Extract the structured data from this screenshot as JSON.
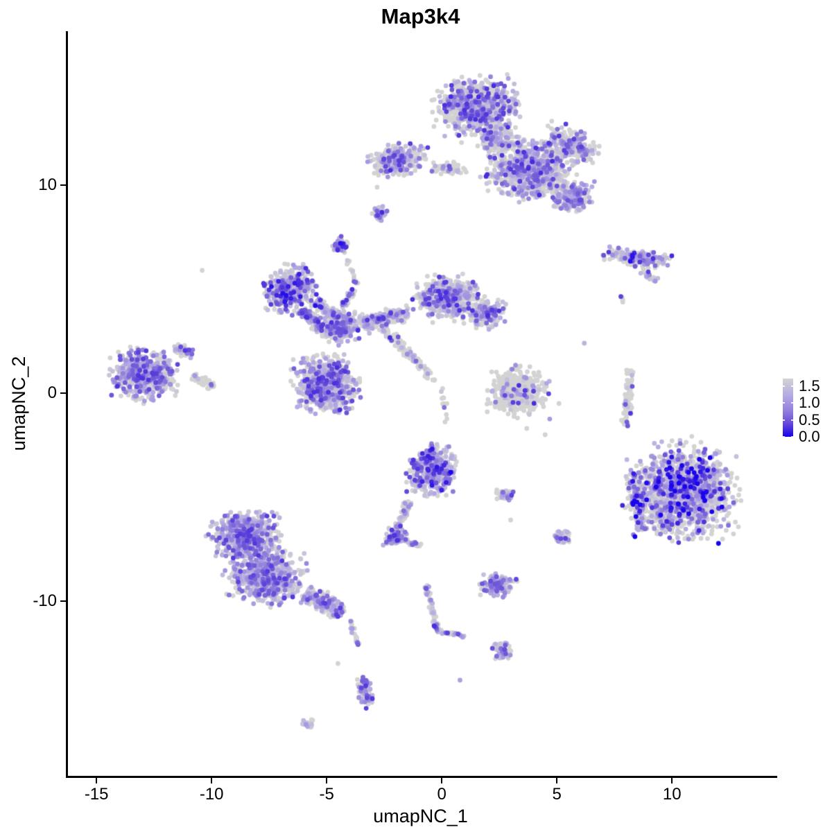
{
  "chart_data": {
    "type": "scatter",
    "title": "Map3k4",
    "xlabel": "umapNC_1",
    "ylabel": "umapNC_2",
    "xlim": [
      -16.33,
      14.48
    ],
    "ylim": [
      -18.4,
      17.4
    ],
    "x_ticks": [
      -15,
      -10,
      -5,
      0,
      5,
      10
    ],
    "y_ticks": [
      -10,
      0,
      10
    ],
    "grid": false,
    "background": "#ffffff",
    "point_radius_px": 3.4,
    "seed": 20240613,
    "legend": {
      "position": "right",
      "tick_labels": [
        "1.5",
        "1.0",
        "0.5",
        "0.0"
      ],
      "tick_values": [
        1.5,
        1.0,
        0.5,
        0.0
      ],
      "vmin": 0.0,
      "vmax": 1.72
    },
    "colors": {
      "axis": "#000000",
      "text": "#000000",
      "zero_expression": "#d3d3d3",
      "gradient_stops": [
        [
          0.0,
          "#d3d3d3"
        ],
        [
          0.3,
          "#b4a8e3"
        ],
        [
          0.55,
          "#9280db"
        ],
        [
          0.75,
          "#6a50d9"
        ],
        [
          0.9,
          "#3b22e0"
        ],
        [
          1.0,
          "#1400ef"
        ]
      ]
    },
    "clusters": [
      {
        "name": "top-main-upper",
        "type": "blob",
        "x": 1.5,
        "y": 13.7,
        "rx": 2.3,
        "ry": 1.8,
        "rot": 0,
        "n": 850,
        "expr_frac": 0.45,
        "expr_scale": 1.0
      },
      {
        "name": "top-main-lower",
        "type": "blob",
        "x": 3.8,
        "y": 10.7,
        "rx": 2.3,
        "ry": 1.75,
        "rot": -15,
        "n": 850,
        "expr_frac": 0.45,
        "expr_scale": 1.0
      },
      {
        "name": "top-main-neck",
        "type": "blob",
        "x": 2.3,
        "y": 12.2,
        "rx": 1.0,
        "ry": 0.9,
        "rot": 0,
        "n": 150,
        "expr_frac": 0.4,
        "expr_scale": 1.0
      },
      {
        "name": "top-right-arm",
        "type": "blob",
        "x": 5.5,
        "y": 11.9,
        "rx": 1.5,
        "ry": 1.0,
        "rot": -25,
        "n": 260,
        "expr_frac": 0.5,
        "expr_scale": 1.0
      },
      {
        "name": "top-right-knob",
        "type": "blob",
        "x": 5.6,
        "y": 9.4,
        "rx": 1.1,
        "ry": 0.85,
        "rot": 0,
        "n": 220,
        "expr_frac": 0.62,
        "expr_scale": 0.9
      },
      {
        "name": "top-left-arm",
        "type": "blob",
        "x": -2.0,
        "y": 11.2,
        "rx": 1.6,
        "ry": 1.0,
        "rot": 10,
        "n": 300,
        "expr_frac": 0.5,
        "expr_scale": 1.0
      },
      {
        "name": "top-bridge",
        "type": "blob",
        "x": 0.2,
        "y": 10.8,
        "rx": 1.0,
        "ry": 0.35,
        "rot": 0,
        "n": 70,
        "expr_frac": 0.35,
        "expr_scale": 0.9
      },
      {
        "name": "tiny-mid-top",
        "type": "blob",
        "x": -2.8,
        "y": 8.6,
        "rx": 0.4,
        "ry": 0.45,
        "rot": 0,
        "n": 35,
        "expr_frac": 0.6,
        "expr_scale": 1.0
      },
      {
        "name": "small-upper-mid",
        "type": "blob",
        "x": -4.5,
        "y": 7.1,
        "rx": 0.55,
        "ry": 0.55,
        "rot": 0,
        "n": 60,
        "expr_frac": 0.65,
        "expr_scale": 1.1
      },
      {
        "name": "chain-upper",
        "type": "line",
        "x1": -4.2,
        "y1": 6.4,
        "x2": -3.8,
        "y2": 5.2,
        "w": 0.12,
        "n": 14,
        "expr_frac": 0.5,
        "expr_scale": 1.0
      },
      {
        "name": "central-left-lobe",
        "type": "blob",
        "x": -6.7,
        "y": 5.0,
        "rx": 1.4,
        "ry": 1.45,
        "rot": 0,
        "n": 430,
        "expr_frac": 0.6,
        "expr_scale": 1.1
      },
      {
        "name": "central-hook-a",
        "type": "line",
        "x1": -6.2,
        "y1": 4.0,
        "x2": -5.0,
        "y2": 2.8,
        "w": 0.35,
        "n": 130,
        "expr_frac": 0.55,
        "expr_scale": 1.0
      },
      {
        "name": "central-hook-b",
        "type": "line",
        "x1": -5.6,
        "y1": 4.4,
        "x2": -4.6,
        "y2": 3.6,
        "w": 0.3,
        "n": 90,
        "expr_frac": 0.55,
        "expr_scale": 1.0
      },
      {
        "name": "central-node",
        "type": "blob",
        "x": -4.5,
        "y": 3.2,
        "rx": 1.15,
        "ry": 1.0,
        "rot": 0,
        "n": 280,
        "expr_frac": 0.55,
        "expr_scale": 1.0
      },
      {
        "name": "central-up-arm",
        "type": "line",
        "x1": -4.4,
        "y1": 4.2,
        "x2": -3.9,
        "y2": 5.0,
        "w": 0.2,
        "n": 40,
        "expr_frac": 0.4,
        "expr_scale": 1.0
      },
      {
        "name": "central-bottom-lobe",
        "type": "blob",
        "x": -5.1,
        "y": 0.4,
        "rx": 1.7,
        "ry": 1.75,
        "rot": 0,
        "n": 720,
        "expr_frac": 0.52,
        "expr_scale": 1.0
      },
      {
        "name": "central-bridge-right",
        "type": "line",
        "x1": -3.6,
        "y1": 3.3,
        "x2": -1.5,
        "y2": 3.9,
        "w": 0.55,
        "n": 210,
        "expr_frac": 0.45,
        "expr_scale": 1.0
      },
      {
        "name": "central-right-lobe",
        "type": "blob",
        "x": 0.2,
        "y": 4.6,
        "rx": 1.8,
        "ry": 1.4,
        "rot": 0,
        "n": 540,
        "expr_frac": 0.42,
        "expr_scale": 1.0
      },
      {
        "name": "central-right-arm",
        "type": "blob",
        "x": 1.9,
        "y": 3.8,
        "rx": 1.0,
        "ry": 0.9,
        "rot": 0,
        "n": 190,
        "expr_frac": 0.5,
        "expr_scale": 1.0
      },
      {
        "name": "central-streak-down",
        "type": "line",
        "x1": -2.7,
        "y1": 3.2,
        "x2": -0.4,
        "y2": 0.6,
        "w": 0.3,
        "n": 110,
        "expr_frac": 0.25,
        "expr_scale": 1.0
      },
      {
        "name": "central-neck-low",
        "type": "line",
        "x1": -0.1,
        "y1": 0.3,
        "x2": 0.1,
        "y2": -1.4,
        "w": 0.15,
        "n": 12,
        "expr_frac": 0.4,
        "expr_scale": 1.0
      },
      {
        "name": "left-isolated",
        "type": "blob",
        "x": -13.0,
        "y": 0.9,
        "rx": 1.8,
        "ry": 1.5,
        "rot": 0,
        "n": 560,
        "expr_frac": 0.6,
        "expr_scale": 1.0
      },
      {
        "name": "left-isolated-knob",
        "type": "blob",
        "x": -11.3,
        "y": 2.0,
        "rx": 0.5,
        "ry": 0.4,
        "rot": 0,
        "n": 45,
        "expr_frac": 0.55,
        "expr_scale": 1.0
      },
      {
        "name": "left-isolated-tail",
        "type": "line",
        "x1": -10.9,
        "y1": 0.8,
        "x2": -10.0,
        "y2": 0.3,
        "w": 0.3,
        "n": 55,
        "expr_frac": 0.2,
        "expr_scale": 1.0
      },
      {
        "name": "mid-right-grey",
        "type": "blob",
        "x": 3.2,
        "y": 0.1,
        "rx": 1.6,
        "ry": 1.45,
        "rot": 0,
        "n": 430,
        "expr_frac": 0.13,
        "expr_scale": 1.0
      },
      {
        "name": "right-strip",
        "type": "line",
        "x1": 8.1,
        "y1": 1.2,
        "x2": 7.9,
        "y2": -1.6,
        "w": 0.28,
        "n": 95,
        "expr_frac": 0.15,
        "expr_scale": 1.0
      },
      {
        "name": "bottom-right-big",
        "type": "blob",
        "x": 10.3,
        "y": -4.7,
        "rx": 2.95,
        "ry": 2.85,
        "rot": 0,
        "n": 1500,
        "expr_frac": 0.45,
        "expr_scale": 1.25
      },
      {
        "name": "bottom-right-tail",
        "type": "line",
        "x1": 8.2,
        "y1": -3.8,
        "x2": 8.6,
        "y2": -6.6,
        "w": 0.4,
        "n": 130,
        "expr_frac": 0.5,
        "expr_scale": 1.2
      },
      {
        "name": "mid-bottom-dense",
        "type": "blob",
        "x": -0.5,
        "y": -3.7,
        "rx": 1.3,
        "ry": 1.6,
        "rot": 0,
        "n": 430,
        "expr_frac": 0.68,
        "expr_scale": 1.1
      },
      {
        "name": "mid-bottom-tail",
        "type": "line",
        "x1": -1.5,
        "y1": -5.2,
        "x2": -2.1,
        "y2": -6.5,
        "w": 0.25,
        "n": 55,
        "expr_frac": 0.5,
        "expr_scale": 1.0
      },
      {
        "name": "mid-bottom-knob",
        "type": "blob",
        "x": -2.1,
        "y": -6.9,
        "rx": 0.65,
        "ry": 0.5,
        "rot": 0,
        "n": 95,
        "expr_frac": 0.7,
        "expr_scale": 1.0
      },
      {
        "name": "mid-bottom-knob-tail",
        "type": "line",
        "x1": -1.6,
        "y1": -7.2,
        "x2": -1.0,
        "y2": -7.3,
        "w": 0.15,
        "n": 22,
        "expr_frac": 0.5,
        "expr_scale": 1.0
      },
      {
        "name": "small-right-pair",
        "type": "blob",
        "x": 2.7,
        "y": -4.9,
        "rx": 0.5,
        "ry": 0.35,
        "rot": 0,
        "n": 45,
        "expr_frac": 0.5,
        "expr_scale": 1.0
      },
      {
        "name": "small-five-neg7",
        "type": "blob",
        "x": 5.1,
        "y": -6.9,
        "rx": 0.45,
        "ry": 0.4,
        "rot": 0,
        "n": 42,
        "expr_frac": 0.65,
        "expr_scale": 1.0
      },
      {
        "name": "bottom-left-upper",
        "type": "blob",
        "x": -8.6,
        "y": -6.9,
        "rx": 1.9,
        "ry": 1.5,
        "rot": 0,
        "n": 620,
        "expr_frac": 0.62,
        "expr_scale": 0.95
      },
      {
        "name": "bottom-left-lower",
        "type": "blob",
        "x": -7.7,
        "y": -8.8,
        "rx": 2.2,
        "ry": 1.6,
        "rot": -10,
        "n": 640,
        "expr_frac": 0.62,
        "expr_scale": 0.95
      },
      {
        "name": "bottom-left-arm",
        "type": "line",
        "x1": -6.0,
        "y1": -9.6,
        "x2": -4.4,
        "y2": -10.6,
        "w": 0.6,
        "n": 210,
        "expr_frac": 0.55,
        "expr_scale": 0.95
      },
      {
        "name": "bottom-left-trickle",
        "type": "line",
        "x1": -4.1,
        "y1": -10.9,
        "x2": -3.7,
        "y2": -12.1,
        "w": 0.12,
        "n": 20,
        "expr_frac": 0.5,
        "expr_scale": 1.0
      },
      {
        "name": "tail-blob",
        "type": "blob",
        "x": -3.4,
        "y": -14.3,
        "rx": 0.45,
        "ry": 1.1,
        "rot": 10,
        "n": 85,
        "expr_frac": 0.65,
        "expr_scale": 1.0
      },
      {
        "name": "small-low-left",
        "type": "blob",
        "x": -5.9,
        "y": -15.9,
        "rx": 0.4,
        "ry": 0.28,
        "rot": 25,
        "n": 18,
        "expr_frac": 0.7,
        "expr_scale": 1.0
      },
      {
        "name": "y-streak-a",
        "type": "line",
        "x1": -0.8,
        "y1": -9.2,
        "x2": -0.3,
        "y2": -11.4,
        "w": 0.18,
        "n": 55,
        "expr_frac": 0.35,
        "expr_scale": 1.0
      },
      {
        "name": "y-streak-b",
        "type": "line",
        "x1": -0.3,
        "y1": -11.4,
        "x2": 0.9,
        "y2": -11.7,
        "w": 0.15,
        "n": 28,
        "expr_frac": 0.4,
        "expr_scale": 1.0
      },
      {
        "name": "y-streak-knob",
        "type": "blob",
        "x": 2.5,
        "y": -12.4,
        "rx": 0.6,
        "ry": 0.5,
        "rot": 0,
        "n": 65,
        "expr_frac": 0.5,
        "expr_scale": 1.0
      },
      {
        "name": "purple-blob-mid",
        "type": "blob",
        "x": 2.3,
        "y": -9.2,
        "rx": 0.9,
        "ry": 0.7,
        "rot": 0,
        "n": 140,
        "expr_frac": 0.72,
        "expr_scale": 0.9
      },
      {
        "name": "top-right-streak",
        "type": "blob",
        "x": 8.4,
        "y": 6.5,
        "rx": 1.9,
        "ry": 0.55,
        "rot": -8,
        "n": 180,
        "expr_frac": 0.48,
        "expr_scale": 1.1
      },
      {
        "name": "top-right-streak-tail",
        "type": "line",
        "x1": 8.6,
        "y1": 5.9,
        "x2": 9.2,
        "y2": 5.4,
        "w": 0.2,
        "n": 20,
        "expr_frac": 0.5,
        "expr_scale": 1.0
      },
      {
        "name": "top-right-triple",
        "type": "blob",
        "x": 7.8,
        "y": 4.5,
        "rx": 0.25,
        "ry": 0.35,
        "rot": 0,
        "n": 5,
        "expr_frac": 0.5,
        "expr_scale": 1.0
      }
    ],
    "singles": [
      [
        -10.5,
        5.9,
        0
      ],
      [
        0.3,
        -3.8,
        1.7
      ],
      [
        8.3,
        -6.9,
        1.7
      ],
      [
        9.9,
        6.6,
        1.5
      ],
      [
        0.7,
        -13.8,
        0.6
      ],
      [
        3.6,
        -1.7,
        0
      ],
      [
        -2.9,
        9.9,
        0
      ],
      [
        4.4,
        -2.0,
        0
      ],
      [
        2.9,
        -6.1,
        0
      ],
      [
        6.1,
        2.4,
        0.4
      ],
      [
        -4.6,
        -13.0,
        0
      ],
      [
        5.0,
        -0.5,
        0
      ]
    ]
  }
}
